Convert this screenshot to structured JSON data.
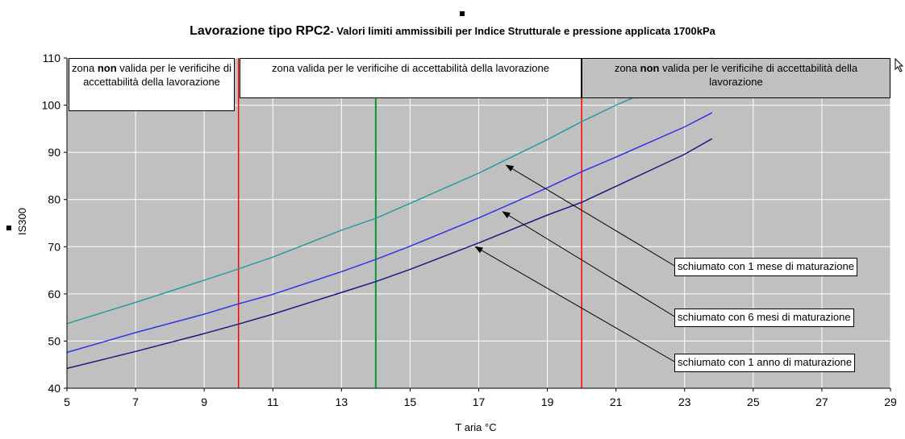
{
  "chart_data": {
    "type": "line",
    "title_main": "Lavorazione tipo RPC2",
    "title_sub": "- Valori limiti ammissibili per Indice Strutturale e pressione applicata 1700kPa",
    "xlabel": "T aria °C",
    "ylabel": "IS300",
    "xlim": [
      5,
      29
    ],
    "ylim": [
      40,
      110
    ],
    "x_ticks": [
      5,
      7,
      9,
      11,
      13,
      15,
      17,
      19,
      21,
      23,
      25,
      27,
      29
    ],
    "y_ticks": [
      40,
      50,
      60,
      70,
      80,
      90,
      100,
      110
    ],
    "grid": true,
    "background": "#c0c0c0",
    "series": [
      {
        "name": "schiumato con 1 mese di maturazione",
        "color": "#2a9c9c",
        "x": [
          5,
          7,
          9,
          10,
          11,
          13,
          14,
          15,
          17,
          19,
          20,
          21,
          23,
          23.8
        ],
        "y": [
          53.7,
          58.2,
          62.9,
          65.3,
          67.8,
          73.5,
          76.0,
          79.2,
          85.6,
          92.7,
          96.5,
          100.0,
          106.3,
          110.0
        ]
      },
      {
        "name": "schiumato con 6 mesi di maturazione",
        "color": "#3333e6",
        "x": [
          5,
          7,
          9,
          10,
          11,
          13,
          14,
          15,
          17,
          19,
          20,
          21,
          23,
          23.8
        ],
        "y": [
          47.6,
          51.8,
          55.7,
          57.9,
          59.9,
          64.7,
          67.3,
          70.1,
          76.1,
          82.5,
          85.9,
          89.0,
          95.4,
          98.4
        ]
      },
      {
        "name": "schiumato con 1 anno di maturazione",
        "color": "#1a1a80",
        "x": [
          5,
          7,
          9,
          10,
          11,
          13,
          14,
          15,
          17,
          19,
          20,
          21,
          23,
          23.8
        ],
        "y": [
          44.2,
          47.8,
          51.6,
          53.6,
          55.7,
          60.3,
          62.6,
          65.2,
          70.8,
          76.7,
          79.4,
          82.8,
          89.6,
          92.9
        ]
      }
    ],
    "vertical_lines": [
      {
        "x": 10,
        "color": "#ff0000"
      },
      {
        "x": 14,
        "color": "#009933"
      },
      {
        "x": 20,
        "color": "#ff0000"
      }
    ],
    "zones": [
      {
        "pre": "zona ",
        "bold": "non",
        "post": " valida per le verificihe di accettabilità della lavorazione"
      },
      {
        "pre": "",
        "bold": "",
        "post": "zona valida per le verificihe di accettabilità della lavorazione"
      },
      {
        "pre": "zona ",
        "bold": "non",
        "post": " valida per le verificihe di accettabilità della lavorazione"
      }
    ],
    "annotations": [
      {
        "text": "schiumato con 1 mese di maturazione",
        "target": [
          17.8,
          87.3
        ]
      },
      {
        "text": "schiumato con 6 mesi di maturazione",
        "target": [
          17.7,
          77.4
        ]
      },
      {
        "text": "schiumato con 1 anno di maturazione",
        "target": [
          16.9,
          70.0
        ]
      }
    ]
  }
}
